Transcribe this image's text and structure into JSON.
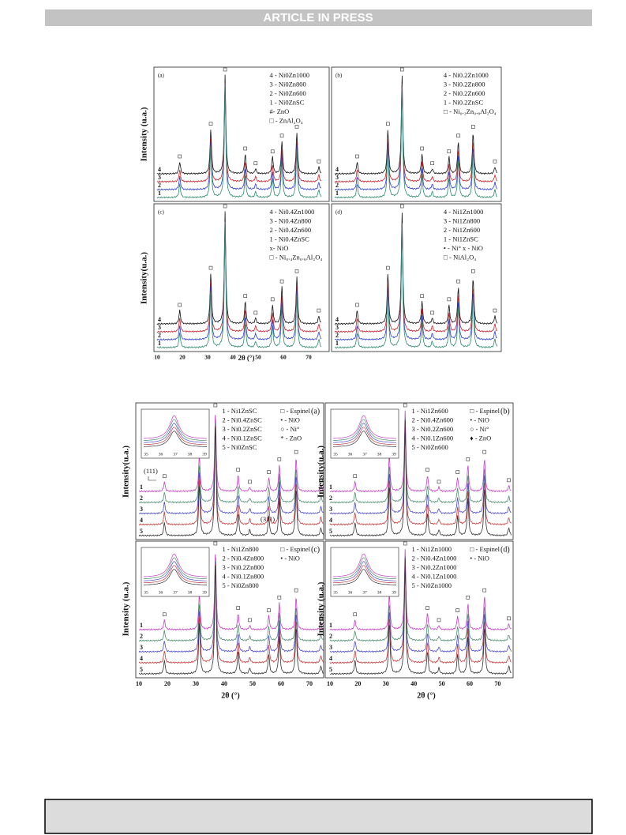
{
  "header": {
    "title": "ARTICLE IN PRESS"
  },
  "figure1": {
    "y_labels": [
      "Intensity (u.a.)",
      "Intensity(u.a.)"
    ],
    "x_label": "2θ (°)",
    "x_ticks": [
      "10",
      "20",
      "30",
      "40",
      "50",
      "60",
      "70"
    ],
    "panels": [
      {
        "label": "(a)",
        "legend": [
          "4 - Ni0Zn1000",
          "3 - Ni0Zn800",
          "2 - Ni0Zn600",
          "1 - Ni0ZnSC",
          "#- ZnO",
          "□ - ZnAl₂O₄"
        ],
        "curve_labels": [
          "4",
          "3",
          "2",
          "1"
        ]
      },
      {
        "label": "(b)",
        "legend": [
          "4 - Ni0.2Zn1000",
          "3 - Ni0.2Zn800",
          "2 - Ni0.2Zn600",
          "1 - Ni0.2ZnSC",
          "□ - Ni₀.₂Zn₀.₈Al₂O₄"
        ],
        "curve_labels": [
          "4",
          "3",
          "2",
          "1"
        ]
      },
      {
        "label": "(c)",
        "legend": [
          "4 - Ni0.4Zn1000",
          "3 - Ni0.4Zn800",
          "2 - Ni0.4Zn600",
          "1 - Ni0.4ZnSC",
          "x- NiO",
          "□ - Ni₀.₄Zn₀.₆Al₂O₄"
        ],
        "curve_labels": [
          "4",
          "3",
          "2",
          "1"
        ]
      },
      {
        "label": "(d)",
        "legend": [
          "4 - Ni1Zn1000",
          "3 - Ni1Zn800",
          "2 - Ni1Zn600",
          "1 - Ni1ZnSC",
          "• - Ni° x - NiO",
          "□ - NiAl₂O₄"
        ],
        "curve_labels": [
          "4",
          "3",
          "2",
          "1"
        ]
      }
    ]
  },
  "figure2": {
    "y_labels": [
      "Intensity(u.a.)",
      "Intensity(u.a.)",
      "Intensity (u.a.)",
      "Intensity (u.a.)"
    ],
    "x_labels": [
      "2θ (°)",
      "2θ (°)"
    ],
    "x_ticks": [
      "10",
      "20",
      "30",
      "40",
      "50",
      "60",
      "70"
    ],
    "inset_ticks": [
      "35",
      "36",
      "37",
      "38",
      "39"
    ],
    "annotations": [
      "(111)",
      "(311)"
    ],
    "panels": [
      {
        "label": "(a)",
        "legend": [
          "1 - Ni1ZnSC",
          "2 - Ni0.4ZnSC",
          "3 - Ni0.2ZnSC",
          "4 - Ni0.1ZnSC",
          "5 - Ni0ZnSC"
        ],
        "legend_right": [
          "□ - Espinel",
          "• - NiO",
          "○ - Ni°",
          "* - ZnO"
        ],
        "curve_labels": [
          "1",
          "2",
          "3",
          "4",
          "5"
        ]
      },
      {
        "label": "(b)",
        "legend": [
          "1 - Ni1Zn600",
          "2 - Ni0.4Zn600",
          "3 - Ni0.2Zn600",
          "4 - Ni0.1Zn600",
          "5 - Ni0Zn600"
        ],
        "legend_right": [
          "□ - Espinel",
          "• - NiO",
          "○ - Ni°",
          "♦ - ZnO"
        ],
        "curve_labels": [
          "1",
          "2",
          "3",
          "4",
          "5"
        ]
      },
      {
        "label": "(c)",
        "legend": [
          "1 - Ni1Zn800",
          "2 - Ni0.4Zn800",
          "3 - Ni0.2Zn800",
          "4 - Ni0.1Zn800",
          "5 - Ni0Zn800"
        ],
        "legend_right": [
          "□ - Espinel",
          "• - NiO"
        ],
        "curve_labels": [
          "1",
          "2",
          "3",
          "4",
          "5"
        ]
      },
      {
        "label": "(d)",
        "legend": [
          "1 - Ni1Zn1000",
          "2 - Ni0.4Zn1000",
          "3 - Ni0.2Zn1000",
          "4 - Ni0.1Zn1000",
          "5 - Ni0Zn1000"
        ],
        "legend_right": [
          "□ - Espinel",
          "• - NiO"
        ],
        "curve_labels": [
          "1",
          "2",
          "3",
          "4",
          "5"
        ]
      }
    ]
  }
}
